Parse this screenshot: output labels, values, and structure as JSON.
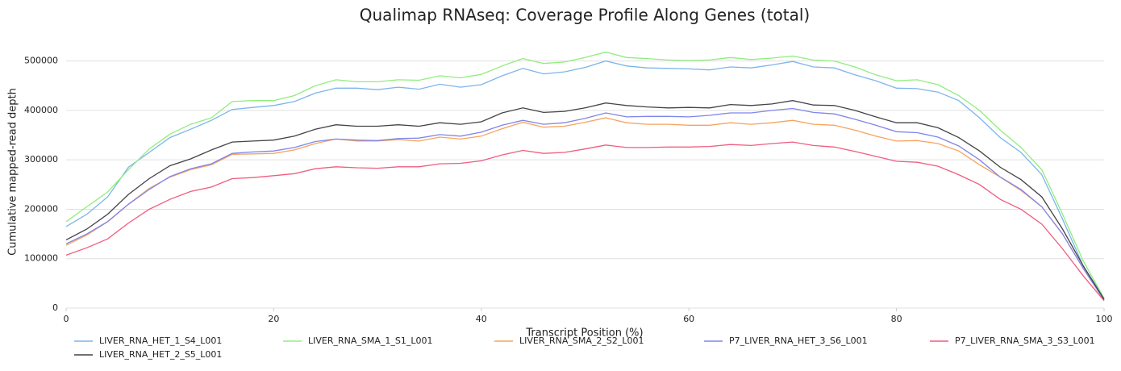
{
  "chart_data": {
    "type": "line",
    "title": "Qualimap RNAseq: Coverage Profile Along Genes (total)",
    "x_label": "Transcript Position (%)",
    "y_label": "Cumulative mapped-read depth",
    "x": [
      0,
      2,
      4,
      6,
      8,
      10,
      12,
      14,
      16,
      18,
      20,
      22,
      24,
      26,
      28,
      30,
      32,
      34,
      36,
      38,
      40,
      42,
      44,
      46,
      48,
      50,
      52,
      54,
      56,
      58,
      60,
      62,
      64,
      66,
      68,
      70,
      72,
      74,
      76,
      78,
      80,
      82,
      84,
      86,
      88,
      90,
      92,
      94,
      96,
      98,
      100
    ],
    "xlim": [
      0,
      100
    ],
    "xticks": [
      0,
      20,
      40,
      60,
      80,
      100
    ],
    "ylim": [
      0,
      550000
    ],
    "yticks": [
      0,
      100000,
      200000,
      300000,
      400000,
      500000
    ],
    "grid": true,
    "legend": "bottom",
    "series": [
      {
        "name": "LIVER_RNA_HET_1_S4_L001",
        "color": "#7cb5ec",
        "values": [
          165000,
          190000,
          225000,
          285000,
          315000,
          345000,
          362000,
          380000,
          402000,
          406000,
          410000,
          418000,
          435000,
          445000,
          445000,
          442000,
          447000,
          443000,
          453000,
          447000,
          452000,
          470000,
          485000,
          474000,
          478000,
          487000,
          500000,
          490000,
          486000,
          485000,
          484000,
          482000,
          488000,
          486000,
          492000,
          499000,
          488000,
          486000,
          472000,
          460000,
          445000,
          444000,
          437000,
          420000,
          385000,
          345000,
          315000,
          270000,
          180000,
          85000,
          20000
        ]
      },
      {
        "name": "LIVER_RNA_SMA_1_S1_L001",
        "color": "#90ed7d",
        "values": [
          175000,
          205000,
          235000,
          280000,
          322000,
          352000,
          372000,
          385000,
          418000,
          420000,
          420000,
          430000,
          450000,
          462000,
          458000,
          458000,
          462000,
          461000,
          470000,
          466000,
          473000,
          490000,
          505000,
          495000,
          498000,
          507000,
          518000,
          507000,
          505000,
          502000,
          501000,
          502000,
          507000,
          503000,
          506000,
          510000,
          502000,
          500000,
          488000,
          472000,
          460000,
          462000,
          452000,
          430000,
          400000,
          360000,
          325000,
          280000,
          190000,
          95000,
          20000
        ]
      },
      {
        "name": "LIVER_RNA_SMA_2_S2_L001",
        "color": "#f7a35c",
        "values": [
          127000,
          148000,
          175000,
          210000,
          242000,
          265000,
          280000,
          290000,
          311000,
          312000,
          313000,
          320000,
          333000,
          342000,
          338000,
          338000,
          341000,
          338000,
          346000,
          342000,
          348000,
          363000,
          376000,
          366000,
          368000,
          376000,
          385000,
          375000,
          372000,
          372000,
          370000,
          370000,
          375000,
          372000,
          375000,
          380000,
          372000,
          370000,
          360000,
          348000,
          338000,
          339000,
          333000,
          318000,
          290000,
          265000,
          238000,
          205000,
          150000,
          80000,
          16000
        ]
      },
      {
        "name": "P7_LIVER_RNA_HET_3_S6_L001",
        "color": "#8085e9",
        "values": [
          130000,
          150000,
          175000,
          210000,
          240000,
          266000,
          282000,
          292000,
          313000,
          316000,
          318000,
          325000,
          337000,
          342000,
          340000,
          339000,
          343000,
          344000,
          351000,
          348000,
          356000,
          370000,
          380000,
          372000,
          375000,
          384000,
          395000,
          387000,
          388000,
          388000,
          387000,
          390000,
          395000,
          395000,
          400000,
          404000,
          396000,
          393000,
          382000,
          370000,
          357000,
          355000,
          346000,
          328000,
          300000,
          265000,
          240000,
          205000,
          150000,
          80000,
          16000
        ]
      },
      {
        "name": "P7_LIVER_RNA_SMA_3_S3_L001",
        "color": "#f15c80",
        "values": [
          107000,
          122000,
          140000,
          172000,
          200000,
          220000,
          236000,
          245000,
          262000,
          264000,
          268000,
          272000,
          282000,
          286000,
          284000,
          283000,
          286000,
          286000,
          292000,
          293000,
          298000,
          310000,
          319000,
          313000,
          315000,
          322000,
          330000,
          325000,
          325000,
          326000,
          326000,
          327000,
          331000,
          329000,
          333000,
          336000,
          329000,
          326000,
          317000,
          307000,
          297000,
          295000,
          287000,
          270000,
          250000,
          220000,
          200000,
          170000,
          120000,
          65000,
          15000
        ]
      },
      {
        "name": "LIVER_RNA_HET_2_S5_L001",
        "color": "#434348",
        "values": [
          138000,
          160000,
          190000,
          230000,
          262000,
          288000,
          302000,
          320000,
          336000,
          338000,
          340000,
          348000,
          362000,
          371000,
          368000,
          368000,
          371000,
          368000,
          375000,
          372000,
          377000,
          395000,
          405000,
          396000,
          398000,
          405000,
          415000,
          410000,
          407000,
          405000,
          406000,
          405000,
          412000,
          410000,
          413000,
          420000,
          411000,
          410000,
          400000,
          387000,
          375000,
          375000,
          365000,
          345000,
          318000,
          285000,
          260000,
          225000,
          160000,
          85000,
          18000
        ]
      }
    ]
  }
}
